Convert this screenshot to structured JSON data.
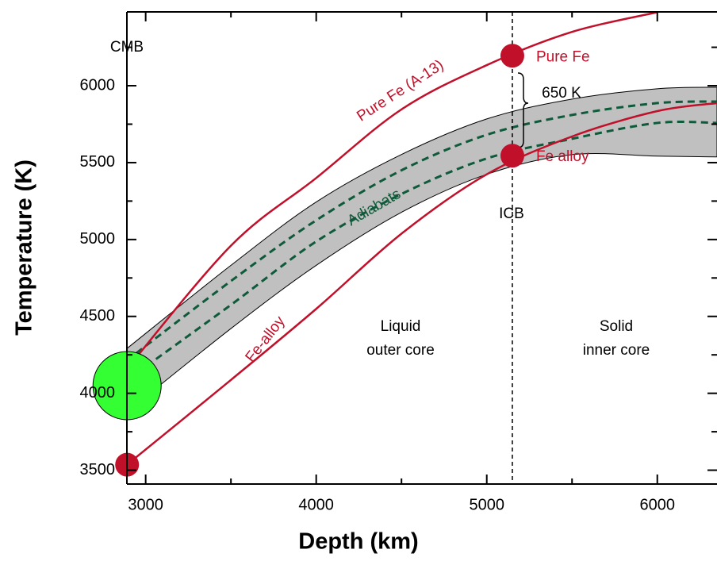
{
  "chart_data": {
    "type": "line",
    "xlabel": "Depth (km)",
    "ylabel": "Temperature (K)",
    "xlim": [
      2890,
      6350
    ],
    "ylim": [
      3410,
      6480
    ],
    "xticks": [
      3000,
      4000,
      5000,
      6000
    ],
    "yticks": [
      3500,
      4000,
      4500,
      5000,
      5500,
      6000
    ],
    "xminorticks": [
      3500,
      4500,
      5500
    ],
    "yminorticks": [
      3750,
      4250,
      4750,
      5250,
      5750,
      6250
    ],
    "x": [
      2891,
      3500,
      4000,
      4500,
      5000,
      5500,
      6000,
      6350
    ],
    "series": [
      {
        "name": "Pure Fe (A-13)",
        "color": "#c0102a",
        "values": [
          4160,
          4960,
          5400,
          5846,
          6134,
          6350,
          6478,
          null
        ]
      },
      {
        "name": "Fe-alloy",
        "color": "#c0102a",
        "values": [
          3536,
          4087,
          4549,
          5038,
          5424,
          5670,
          5835,
          5887
        ]
      }
    ],
    "adiabats": {
      "label": "Adiabats",
      "color": "#0f5a3a",
      "lines": [
        {
          "values": [
            4215,
            4730,
            5125,
            5450,
            5681,
            5810,
            5887,
            5897
          ]
        },
        {
          "values": [
            4087,
            4575,
            4987,
            5296,
            5527,
            5655,
            5758,
            5758
          ]
        }
      ]
    },
    "band": {
      "color": "#c0c0c0",
      "upper": [
        4292,
        4832,
        5244,
        5553,
        5784,
        5913,
        5980,
        5990
      ],
      "lower": [
        3880,
        4421,
        4832,
        5177,
        5424,
        5552,
        5542,
        5537
      ]
    },
    "points": [
      {
        "label": "Pure Fe",
        "x": 5150,
        "y": 6195
      },
      {
        "label": "Fe alloy",
        "x": 5150,
        "y": 5545
      },
      {
        "x": 2891,
        "y": 3536
      }
    ],
    "cmb_estimate": {
      "x": 2891,
      "y": 4050,
      "color": "#33ff33"
    },
    "icb": {
      "label": "ICB",
      "x": 5150
    },
    "cmb": {
      "label": "CMB"
    },
    "gap_label": "650 K",
    "regions": [
      [
        "Liquid",
        "outer core"
      ],
      [
        "Solid",
        "inner core"
      ]
    ]
  }
}
